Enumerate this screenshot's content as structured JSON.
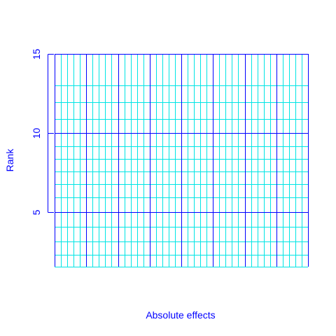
{
  "chart_data": {
    "type": "scatter",
    "title": "",
    "xlabel": "Absolute effects",
    "ylabel": "Rank",
    "yticks": [
      {
        "value": 5,
        "label": "5"
      },
      {
        "value": 10,
        "label": "10"
      },
      {
        "value": 15,
        "label": "15"
      }
    ],
    "xticks": [],
    "xlim": [
      0,
      8
    ],
    "ylim": [
      1.55,
      15
    ],
    "major_x": [
      0,
      1,
      2,
      3,
      4,
      5,
      6,
      7,
      8
    ],
    "minor_x_per_major": 5,
    "major_y": [
      5,
      10,
      15
    ],
    "minor_y": [
      1.55,
      2.3,
      3.15,
      4.05,
      5.95,
      6.75,
      7.55,
      8.35,
      9.15,
      10.9,
      11.95,
      13.0
    ],
    "series": [],
    "grid": true,
    "colors": {
      "axis": "#0000ff",
      "text": "#0000ff",
      "major_grid": "#0000ff",
      "minor_grid": "#00e5e5"
    }
  }
}
